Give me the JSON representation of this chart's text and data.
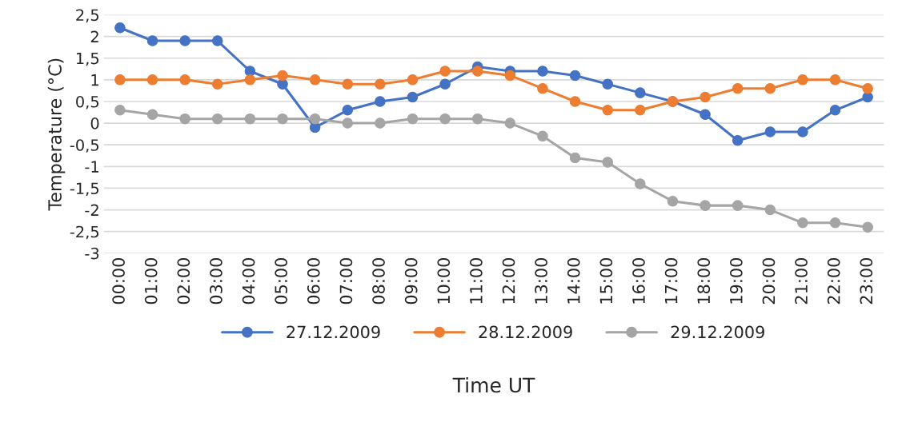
{
  "chart_data": {
    "type": "line",
    "xlabel": "Time UT",
    "ylabel": "Temperature (°C)",
    "categories": [
      "00:00",
      "01:00",
      "02:00",
      "03:00",
      "04:00",
      "05:00",
      "06:00",
      "07:00",
      "08:00",
      "09:00",
      "10:00",
      "11:00",
      "12:00",
      "13:00",
      "14:00",
      "15:00",
      "16:00",
      "17:00",
      "18:00",
      "19:00",
      "20:00",
      "21:00",
      "22:00",
      "23:00"
    ],
    "series": [
      {
        "name": "27.12.2009",
        "color": "#4472c4",
        "values": [
          2.2,
          1.9,
          1.9,
          1.9,
          1.2,
          0.9,
          -0.1,
          0.3,
          0.5,
          0.6,
          0.9,
          1.3,
          1.2,
          1.2,
          1.1,
          0.9,
          0.7,
          0.5,
          0.2,
          -0.4,
          -0.2,
          -0.2,
          0.3,
          0.6
        ]
      },
      {
        "name": "28.12.2009",
        "color": "#ed7d31",
        "values": [
          1,
          1,
          1,
          0.9,
          1,
          1.1,
          1,
          0.9,
          0.9,
          1,
          1.2,
          1.2,
          1.1,
          0.8,
          0.5,
          0.3,
          0.3,
          0.5,
          0.6,
          0.8,
          0.8,
          1,
          1,
          0.8
        ]
      },
      {
        "name": "29.12.2009",
        "color": "#a5a5a5",
        "values": [
          0.3,
          0.2,
          0.1,
          0.1,
          0.1,
          0.1,
          0.1,
          0,
          0,
          0.1,
          0.1,
          0.1,
          0,
          -0.3,
          -0.8,
          -0.9,
          -1.4,
          -1.8,
          -1.9,
          -1.9,
          -2,
          -2.3,
          -2.3,
          -2.4
        ]
      }
    ],
    "ylim": [
      -3,
      2.5
    ],
    "yticks": [
      {
        "value": -3,
        "label": "-3"
      },
      {
        "value": -2.5,
        "label": "-2,5"
      },
      {
        "value": -2,
        "label": "-2"
      },
      {
        "value": -1.5,
        "label": "-1,5"
      },
      {
        "value": -1,
        "label": "-1"
      },
      {
        "value": -0.5,
        "label": "-0,5"
      },
      {
        "value": 0,
        "label": "0"
      },
      {
        "value": 0.5,
        "label": "0,5"
      },
      {
        "value": 1,
        "label": "1"
      },
      {
        "value": 1.5,
        "label": "1,5"
      },
      {
        "value": 2,
        "label": "2"
      },
      {
        "value": 2.5,
        "label": "2,5"
      }
    ],
    "grid": "y",
    "legend": "bottom",
    "marker": "circle",
    "line_style": "solid"
  }
}
